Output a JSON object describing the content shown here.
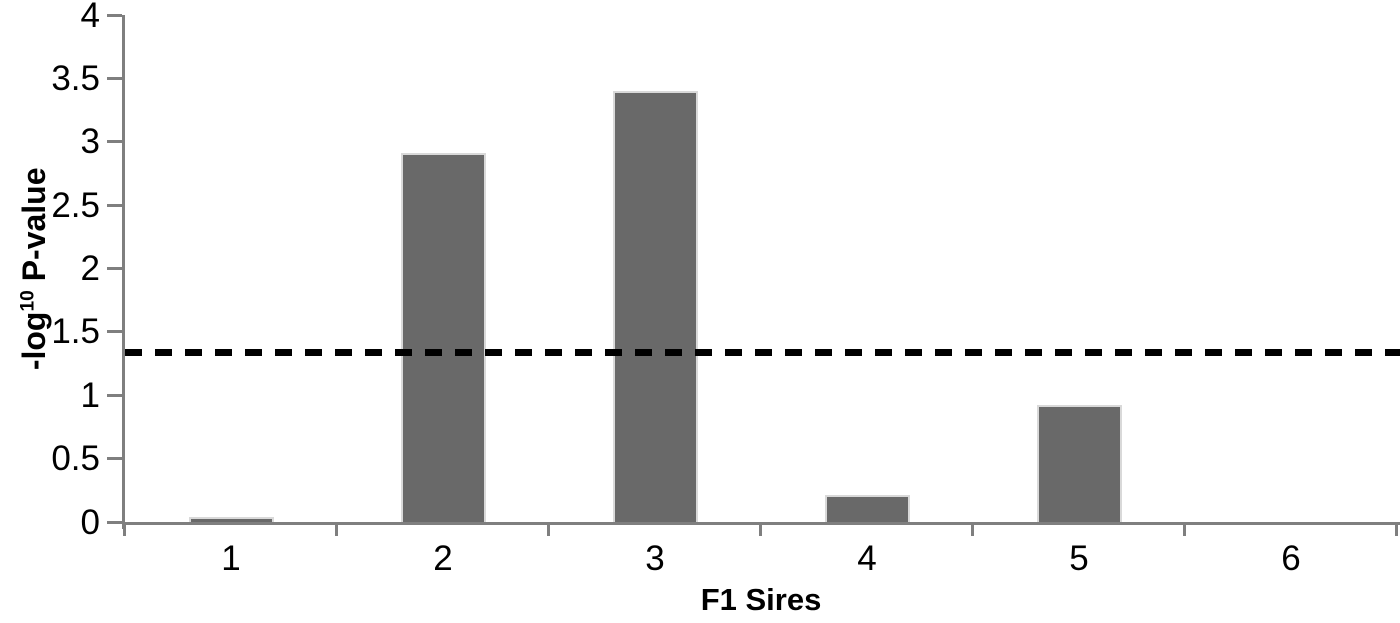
{
  "chart": {
    "background_color": "#ffffff",
    "axis_color": "#7f7f7f",
    "text_color": "#000000",
    "bar_color": "#696969",
    "bar_border_color": "#d9d9d9",
    "ylabel_prefix": "-log",
    "ylabel_sup": "10",
    "ylabel_suffix": " P-value"
  },
  "chart_data": {
    "type": "bar",
    "title": "",
    "xlabel": "F1 Sires",
    "ylabel": "-log10 P-value",
    "categories": [
      "1",
      "2",
      "3",
      "4",
      "5",
      "6"
    ],
    "values": [
      0.04,
      2.91,
      3.4,
      0.21,
      0.92,
      0
    ],
    "ylim": [
      0,
      4
    ],
    "ytick_labels": [
      "0",
      "0.5",
      "1",
      "1.5",
      "2",
      "2.5",
      "3",
      "3.5",
      "4"
    ],
    "threshold_line": {
      "value": 1.34,
      "style": "dashed",
      "color": "#000000"
    },
    "grid": false,
    "legend": false
  }
}
